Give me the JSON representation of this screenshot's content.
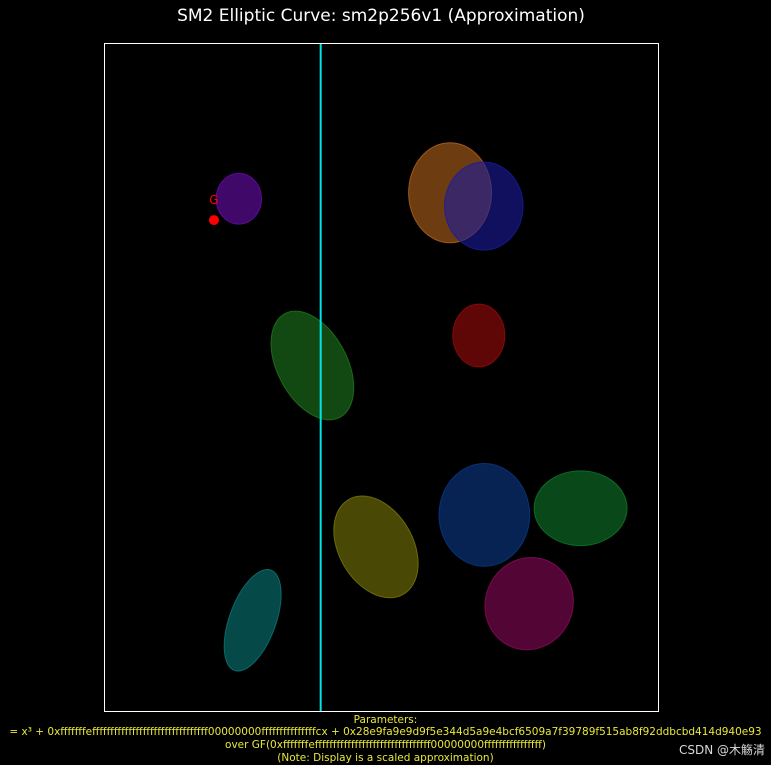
{
  "chart_data": {
    "type": "scatter",
    "title": "SM2 Elliptic Curve: sm2p256v1 (Approximation)",
    "xlabel": "",
    "ylabel": "",
    "xlim": [
      0,
      10
    ],
    "ylim": [
      0,
      10
    ],
    "grid": false,
    "axis_line": {
      "x": 3.9,
      "color": "#00e5e5"
    },
    "point": {
      "label": "G",
      "x": 1.97,
      "y": 7.36,
      "color": "#ff0000"
    },
    "ellipses": [
      {
        "cx": 2.42,
        "cy": 7.68,
        "rx": 0.41,
        "ry": 0.38,
        "angle": 0,
        "color": "#6a0dad"
      },
      {
        "cx": 6.24,
        "cy": 7.77,
        "rx": 0.75,
        "ry": 0.75,
        "angle": 0,
        "color": "#b5651d"
      },
      {
        "cx": 6.85,
        "cy": 7.57,
        "rx": 0.71,
        "ry": 0.66,
        "angle": 0,
        "color": "#1a1a9e"
      },
      {
        "cx": 6.76,
        "cy": 5.63,
        "rx": 0.47,
        "ry": 0.47,
        "angle": 0,
        "color": "#9e0a0a"
      },
      {
        "cx": 3.75,
        "cy": 5.18,
        "rx": 0.63,
        "ry": 0.88,
        "angle": -28,
        "color": "#1e7a1e"
      },
      {
        "cx": 6.86,
        "cy": 2.94,
        "rx": 0.82,
        "ry": 0.77,
        "angle": 0,
        "color": "#0a3a8a"
      },
      {
        "cx": 8.6,
        "cy": 3.04,
        "rx": 0.84,
        "ry": 0.56,
        "angle": 0,
        "color": "#0f7a2a"
      },
      {
        "cx": 4.9,
        "cy": 2.46,
        "rx": 0.67,
        "ry": 0.82,
        "angle": -30,
        "color": "#7a7a08"
      },
      {
        "cx": 7.67,
        "cy": 1.61,
        "rx": 0.79,
        "ry": 0.7,
        "angle": 25,
        "color": "#8a0a5a"
      },
      {
        "cx": 2.67,
        "cy": 1.36,
        "rx": 0.42,
        "ry": 0.8,
        "angle": 20,
        "color": "#0a7a7a"
      }
    ]
  },
  "params": {
    "heading": "Parameters:",
    "equation": "= x³ + 0xfffffffeffffffffffffffffffffffffffffffff00000000fffffffffffffffcx + 0x28e9fa9e9d9f5e344d5a9e4bcf6509a7f39789f515ab8f92ddbcbd414d940e93",
    "field": "over GF(0xfffffffeffffffffffffffffffffffffffffffff00000000ffffffffffffffff)",
    "note": "(Note: Display is a scaled approximation)"
  },
  "watermark": "CSDN @木觞清"
}
